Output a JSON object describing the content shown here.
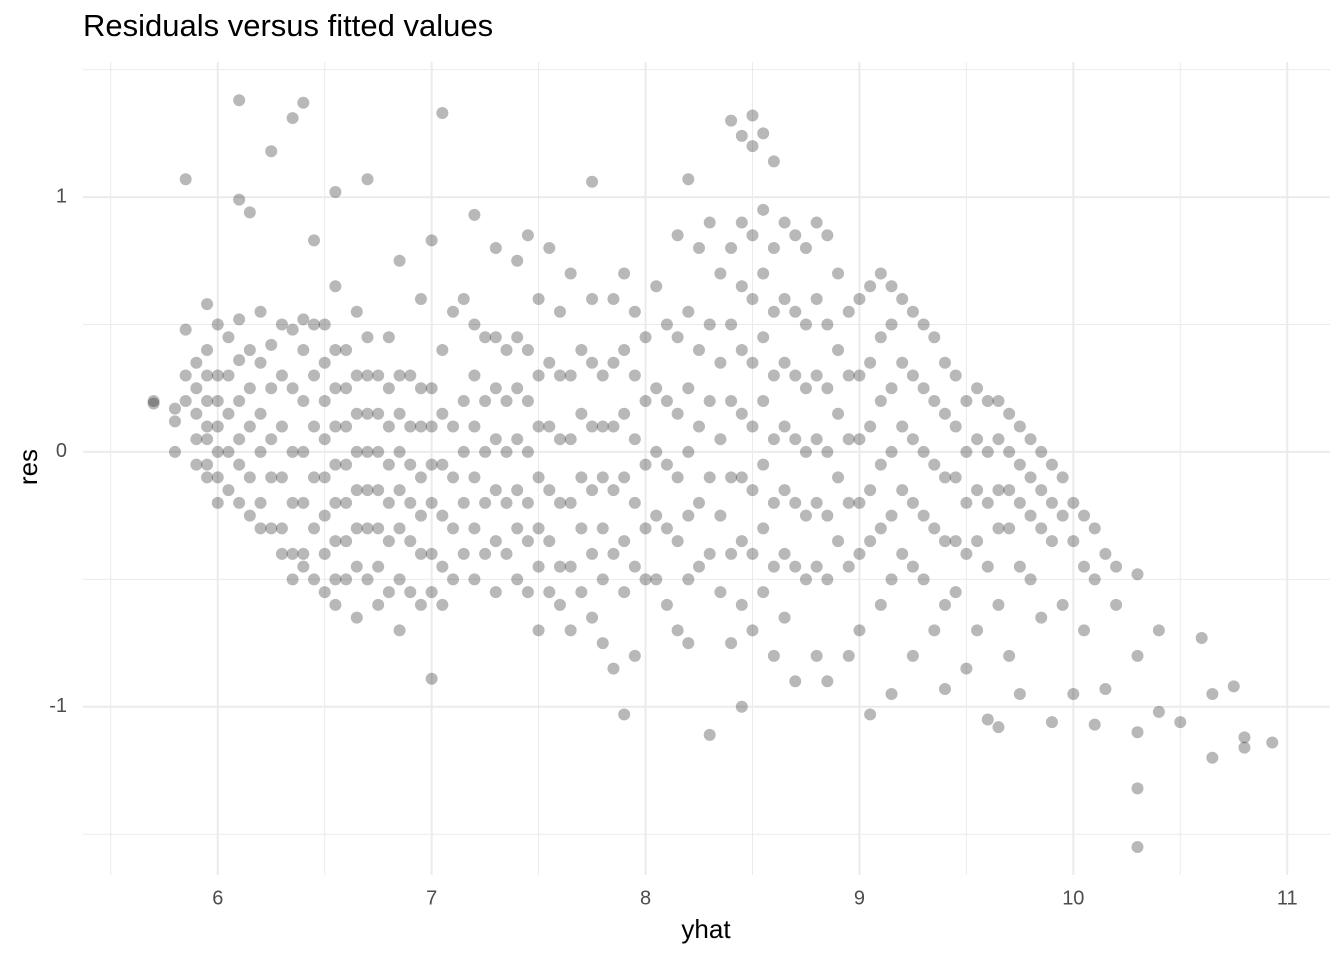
{
  "chart_data": {
    "type": "scatter",
    "title": "Residuals versus fitted values",
    "x_label": "yhat",
    "y_label": "res",
    "color": "#000000",
    "opacity": 0.28,
    "grid": true,
    "xlim": [
      5.37,
      11.2
    ],
    "xticks": [
      6,
      7,
      8,
      9,
      10,
      11
    ],
    "x_minor_grid": [
      5.5,
      6.5,
      7.5,
      8.5,
      9.5,
      10.5
    ],
    "ylim": [
      -1.66,
      1.53
    ],
    "yticks": [
      -1,
      0,
      1
    ],
    "y_minor_grid": [
      -1.5,
      -0.5,
      0.5,
      1.5
    ],
    "x": [
      5.7,
      5.7,
      5.8,
      5.8,
      5.8,
      5.85,
      5.85,
      5.85,
      5.85,
      5.9,
      5.9,
      5.9,
      5.9,
      5.9,
      5.95,
      5.95,
      5.95,
      5.95,
      5.95,
      5.95,
      5.95,
      5.95,
      6.0,
      6.0,
      6.0,
      6.0,
      6.0,
      6.0,
      6.0,
      6.05,
      6.05,
      6.05,
      6.05,
      6.05,
      6.1,
      6.1,
      6.1,
      6.1,
      6.1,
      6.1,
      6.1,
      6.1,
      6.15,
      6.15,
      6.15,
      6.15,
      6.15,
      6.15,
      6.2,
      6.2,
      6.2,
      6.2,
      6.2,
      6.2,
      6.25,
      6.25,
      6.25,
      6.25,
      6.25,
      6.25,
      6.3,
      6.3,
      6.3,
      6.3,
      6.3,
      6.3,
      6.35,
      6.35,
      6.35,
      6.35,
      6.35,
      6.35,
      6.35,
      6.4,
      6.4,
      6.4,
      6.4,
      6.4,
      6.4,
      6.4,
      6.4,
      6.45,
      6.45,
      6.45,
      6.45,
      6.45,
      6.45,
      6.45,
      6.5,
      6.5,
      6.5,
      6.5,
      6.5,
      6.5,
      6.5,
      6.5,
      6.55,
      6.55,
      6.55,
      6.55,
      6.55,
      6.55,
      6.55,
      6.55,
      6.55,
      6.55,
      6.6,
      6.6,
      6.6,
      6.6,
      6.6,
      6.6,
      6.6,
      6.65,
      6.65,
      6.65,
      6.65,
      6.65,
      6.65,
      6.65,
      6.65,
      6.7,
      6.7,
      6.7,
      6.7,
      6.7,
      6.7,
      6.7,
      6.7,
      6.75,
      6.75,
      6.75,
      6.75,
      6.75,
      6.75,
      6.75,
      6.8,
      6.8,
      6.8,
      6.8,
      6.8,
      6.8,
      6.8,
      6.85,
      6.85,
      6.85,
      6.85,
      6.85,
      6.85,
      6.85,
      6.85,
      6.9,
      6.9,
      6.9,
      6.9,
      6.9,
      6.9,
      6.95,
      6.95,
      6.95,
      6.95,
      6.95,
      6.95,
      6.95,
      7.0,
      7.0,
      7.0,
      7.0,
      7.0,
      7.0,
      7.0,
      7.0,
      7.05,
      7.05,
      7.05,
      7.05,
      7.05,
      7.05,
      7.05,
      7.1,
      7.1,
      7.1,
      7.1,
      7.1,
      7.15,
      7.15,
      7.15,
      7.15,
      7.15,
      7.2,
      7.2,
      7.2,
      7.2,
      7.2,
      7.2,
      7.2,
      7.25,
      7.25,
      7.25,
      7.25,
      7.25,
      7.3,
      7.3,
      7.3,
      7.3,
      7.3,
      7.3,
      7.3,
      7.35,
      7.35,
      7.35,
      7.35,
      7.35,
      7.4,
      7.4,
      7.4,
      7.4,
      7.4,
      7.4,
      7.4,
      7.45,
      7.45,
      7.45,
      7.45,
      7.45,
      7.45,
      7.45,
      7.5,
      7.5,
      7.5,
      7.5,
      7.5,
      7.5,
      7.5,
      7.55,
      7.55,
      7.55,
      7.55,
      7.55,
      7.55,
      7.6,
      7.6,
      7.6,
      7.6,
      7.6,
      7.6,
      7.65,
      7.65,
      7.65,
      7.65,
      7.65,
      7.65,
      7.7,
      7.7,
      7.7,
      7.7,
      7.7,
      7.75,
      7.75,
      7.75,
      7.75,
      7.75,
      7.75,
      7.75,
      7.8,
      7.8,
      7.8,
      7.8,
      7.8,
      7.8,
      7.85,
      7.85,
      7.85,
      7.85,
      7.85,
      7.85,
      7.9,
      7.9,
      7.9,
      7.9,
      7.9,
      7.9,
      7.9,
      7.95,
      7.95,
      7.95,
      7.95,
      7.95,
      7.95,
      8.0,
      8.0,
      8.0,
      8.0,
      8.0,
      8.05,
      8.05,
      8.05,
      8.05,
      8.05,
      8.1,
      8.1,
      8.1,
      8.1,
      8.1,
      8.15,
      8.15,
      8.15,
      8.15,
      8.15,
      8.15,
      8.2,
      8.2,
      8.2,
      8.2,
      8.2,
      8.2,
      8.2,
      8.25,
      8.25,
      8.25,
      8.25,
      8.25,
      8.3,
      8.3,
      8.3,
      8.3,
      8.3,
      8.3,
      8.35,
      8.35,
      8.35,
      8.35,
      8.35,
      8.4,
      8.4,
      8.4,
      8.4,
      8.4,
      8.4,
      8.4,
      8.45,
      8.45,
      8.45,
      8.45,
      8.45,
      8.45,
      8.45,
      8.45,
      8.45,
      8.5,
      8.5,
      8.5,
      8.5,
      8.5,
      8.5,
      8.5,
      8.5,
      8.5,
      8.55,
      8.55,
      8.55,
      8.55,
      8.55,
      8.55,
      8.55,
      8.55,
      8.6,
      8.6,
      8.6,
      8.6,
      8.6,
      8.6,
      8.6,
      8.6,
      8.65,
      8.65,
      8.65,
      8.65,
      8.65,
      8.65,
      8.65,
      8.7,
      8.7,
      8.7,
      8.7,
      8.7,
      8.7,
      8.7,
      8.75,
      8.75,
      8.75,
      8.75,
      8.75,
      8.75,
      8.8,
      8.8,
      8.8,
      8.8,
      8.8,
      8.8,
      8.8,
      8.85,
      8.85,
      8.85,
      8.85,
      8.85,
      8.85,
      8.85,
      8.9,
      8.9,
      8.9,
      8.9,
      8.9,
      8.95,
      8.95,
      8.95,
      8.95,
      8.95,
      8.95,
      9.0,
      9.0,
      9.0,
      9.0,
      9.0,
      9.0,
      9.05,
      9.05,
      9.05,
      9.05,
      9.05,
      9.05,
      9.1,
      9.1,
      9.1,
      9.1,
      9.1,
      9.1,
      9.15,
      9.15,
      9.15,
      9.15,
      9.15,
      9.15,
      9.15,
      9.2,
      9.2,
      9.2,
      9.2,
      9.2,
      9.25,
      9.25,
      9.25,
      9.25,
      9.25,
      9.25,
      9.3,
      9.3,
      9.3,
      9.3,
      9.3,
      9.35,
      9.35,
      9.35,
      9.35,
      9.35,
      9.4,
      9.4,
      9.4,
      9.4,
      9.4,
      9.4,
      9.45,
      9.45,
      9.45,
      9.45,
      9.45,
      9.5,
      9.5,
      9.5,
      9.5,
      9.5,
      9.55,
      9.55,
      9.55,
      9.55,
      9.55,
      9.6,
      9.6,
      9.6,
      9.6,
      9.6,
      9.65,
      9.65,
      9.65,
      9.65,
      9.65,
      9.65,
      9.7,
      9.7,
      9.7,
      9.7,
      9.7,
      9.75,
      9.75,
      9.75,
      9.75,
      9.75,
      9.8,
      9.8,
      9.8,
      9.8,
      9.85,
      9.85,
      9.85,
      9.85,
      9.9,
      9.9,
      9.9,
      9.9,
      9.95,
      9.95,
      9.95,
      10.0,
      10.0,
      10.0,
      10.05,
      10.05,
      10.05,
      10.1,
      10.1,
      10.1,
      10.15,
      10.15,
      10.2,
      10.2,
      10.3,
      10.3,
      10.3,
      10.3,
      10.3,
      10.4,
      10.4,
      10.5,
      10.6,
      10.65,
      10.65,
      10.75,
      10.8,
      10.8,
      10.93
    ],
    "values": [
      0.19,
      0.2,
      0.17,
      0.12,
      0.0,
      1.07,
      0.48,
      0.3,
      0.2,
      0.35,
      0.25,
      0.15,
      0.05,
      -0.05,
      0.58,
      0.4,
      0.3,
      0.2,
      0.1,
      0.05,
      -0.05,
      -0.1,
      0.5,
      0.3,
      0.2,
      0.1,
      0.0,
      -0.1,
      -0.2,
      0.45,
      0.3,
      0.15,
      0.0,
      -0.15,
      1.38,
      0.99,
      0.52,
      0.36,
      0.2,
      0.05,
      -0.05,
      -0.2,
      0.94,
      0.4,
      0.25,
      0.1,
      -0.1,
      -0.25,
      0.55,
      0.35,
      0.15,
      0.0,
      -0.2,
      -0.3,
      1.18,
      0.42,
      0.25,
      0.05,
      -0.1,
      -0.3,
      0.5,
      0.3,
      0.1,
      -0.1,
      -0.3,
      -0.4,
      1.31,
      0.48,
      0.25,
      0.0,
      -0.2,
      -0.4,
      -0.5,
      1.37,
      0.52,
      0.4,
      0.2,
      0.0,
      -0.2,
      -0.4,
      -0.45,
      0.83,
      0.5,
      0.3,
      0.1,
      -0.1,
      -0.3,
      -0.5,
      0.5,
      0.35,
      0.2,
      0.05,
      -0.1,
      -0.25,
      -0.4,
      -0.55,
      1.02,
      0.65,
      0.4,
      0.25,
      0.1,
      -0.05,
      -0.2,
      -0.35,
      -0.5,
      -0.6,
      0.4,
      0.25,
      0.1,
      -0.05,
      -0.2,
      -0.35,
      -0.5,
      0.55,
      0.3,
      0.15,
      0.0,
      -0.15,
      -0.3,
      -0.45,
      -0.65,
      1.07,
      0.45,
      0.3,
      0.15,
      0.0,
      -0.15,
      -0.3,
      -0.5,
      0.3,
      0.15,
      0.0,
      -0.15,
      -0.3,
      -0.45,
      -0.6,
      0.45,
      0.25,
      0.1,
      -0.05,
      -0.2,
      -0.35,
      -0.55,
      0.75,
      0.3,
      0.15,
      0.0,
      -0.15,
      -0.3,
      -0.5,
      -0.7,
      0.3,
      0.1,
      -0.05,
      -0.2,
      -0.35,
      -0.55,
      0.6,
      0.25,
      0.1,
      -0.1,
      -0.25,
      -0.4,
      -0.6,
      0.83,
      0.25,
      0.1,
      -0.05,
      -0.2,
      -0.4,
      -0.55,
      -0.89,
      1.33,
      0.4,
      0.15,
      -0.05,
      -0.25,
      -0.45,
      -0.6,
      0.55,
      0.1,
      -0.1,
      -0.3,
      -0.5,
      0.6,
      0.2,
      0.0,
      -0.2,
      -0.4,
      0.93,
      0.5,
      0.3,
      0.1,
      -0.1,
      -0.3,
      -0.5,
      0.45,
      0.2,
      0.0,
      -0.2,
      -0.4,
      0.8,
      0.45,
      0.25,
      0.05,
      -0.15,
      -0.35,
      -0.55,
      0.4,
      0.2,
      0.0,
      -0.2,
      -0.4,
      0.75,
      0.45,
      0.25,
      0.05,
      -0.15,
      -0.3,
      -0.5,
      0.85,
      0.4,
      0.2,
      0.0,
      -0.2,
      -0.35,
      -0.55,
      0.6,
      0.3,
      0.1,
      -0.1,
      -0.3,
      -0.45,
      -0.7,
      0.8,
      0.35,
      0.1,
      -0.15,
      -0.35,
      -0.55,
      0.55,
      0.3,
      0.05,
      -0.2,
      -0.45,
      -0.6,
      0.7,
      0.3,
      0.05,
      -0.2,
      -0.45,
      -0.7,
      0.4,
      0.15,
      -0.1,
      -0.3,
      -0.55,
      1.06,
      0.6,
      0.35,
      0.1,
      -0.15,
      -0.4,
      -0.65,
      0.3,
      0.1,
      -0.1,
      -0.3,
      -0.5,
      -0.75,
      0.6,
      0.35,
      0.1,
      -0.15,
      -0.4,
      -0.85,
      0.7,
      0.4,
      0.15,
      -0.1,
      -0.35,
      -0.55,
      -1.03,
      0.55,
      0.3,
      0.05,
      -0.2,
      -0.45,
      -0.8,
      0.45,
      0.2,
      -0.05,
      -0.3,
      -0.5,
      0.65,
      0.25,
      0.0,
      -0.25,
      -0.5,
      0.5,
      0.2,
      -0.05,
      -0.3,
      -0.6,
      0.85,
      0.45,
      0.15,
      -0.1,
      -0.35,
      -0.7,
      1.07,
      0.55,
      0.25,
      0.0,
      -0.25,
      -0.5,
      -0.75,
      0.8,
      0.4,
      0.1,
      -0.2,
      -0.45,
      0.9,
      0.5,
      0.2,
      -0.1,
      -0.4,
      -1.11,
      0.7,
      0.35,
      0.05,
      -0.25,
      -0.55,
      1.3,
      0.8,
      0.5,
      0.2,
      -0.1,
      -0.4,
      -0.75,
      1.24,
      0.9,
      0.65,
      0.4,
      0.15,
      -0.1,
      -0.35,
      -0.6,
      -1.0,
      1.32,
      1.2,
      0.85,
      0.6,
      0.35,
      0.1,
      -0.15,
      -0.4,
      -0.7,
      1.25,
      0.95,
      0.7,
      0.45,
      0.2,
      -0.05,
      -0.3,
      -0.55,
      1.14,
      0.8,
      0.55,
      0.3,
      0.05,
      -0.2,
      -0.45,
      -0.8,
      0.9,
      0.6,
      0.35,
      0.1,
      -0.15,
      -0.4,
      -0.65,
      0.85,
      0.55,
      0.3,
      0.05,
      -0.2,
      -0.45,
      -0.9,
      0.8,
      0.5,
      0.25,
      0.0,
      -0.25,
      -0.5,
      0.9,
      0.6,
      0.3,
      0.05,
      -0.2,
      -0.45,
      -0.8,
      0.85,
      0.5,
      0.25,
      0.0,
      -0.25,
      -0.5,
      -0.9,
      0.7,
      0.4,
      0.15,
      -0.1,
      -0.35,
      0.55,
      0.3,
      0.05,
      -0.2,
      -0.45,
      -0.8,
      0.6,
      0.3,
      0.05,
      -0.2,
      -0.4,
      -0.7,
      0.65,
      0.35,
      0.1,
      -0.15,
      -0.35,
      -1.03,
      0.7,
      0.45,
      0.2,
      -0.05,
      -0.3,
      -0.6,
      0.65,
      0.5,
      0.25,
      0.0,
      -0.25,
      -0.5,
      -0.95,
      0.6,
      0.35,
      0.1,
      -0.15,
      -0.4,
      0.55,
      0.3,
      0.05,
      -0.2,
      -0.45,
      -0.8,
      0.5,
      0.25,
      0.0,
      -0.25,
      -0.5,
      0.45,
      0.2,
      -0.05,
      -0.3,
      -0.7,
      0.35,
      0.15,
      -0.1,
      -0.35,
      -0.6,
      -0.93,
      0.3,
      0.1,
      -0.1,
      -0.35,
      -0.55,
      0.2,
      0.0,
      -0.2,
      -0.4,
      -0.85,
      0.25,
      0.05,
      -0.15,
      -0.35,
      -0.7,
      0.2,
      0.0,
      -0.2,
      -0.45,
      -1.05,
      0.2,
      0.05,
      -0.15,
      -0.3,
      -0.6,
      -1.08,
      0.15,
      0.0,
      -0.15,
      -0.3,
      -0.8,
      0.1,
      -0.05,
      -0.2,
      -0.45,
      -0.95,
      0.05,
      -0.1,
      -0.25,
      -0.5,
      0.0,
      -0.15,
      -0.3,
      -0.65,
      -0.05,
      -0.2,
      -0.35,
      -1.06,
      -0.1,
      -0.25,
      -0.6,
      -0.2,
      -0.35,
      -0.95,
      -0.25,
      -0.45,
      -0.7,
      -0.3,
      -0.5,
      -1.07,
      -0.4,
      -0.93,
      -0.45,
      -0.6,
      -0.48,
      -0.8,
      -1.1,
      -1.32,
      -1.55,
      -0.7,
      -1.02,
      -1.06,
      -0.73,
      -0.95,
      -1.2,
      -0.92,
      -1.12,
      -1.16,
      -1.14
    ]
  }
}
